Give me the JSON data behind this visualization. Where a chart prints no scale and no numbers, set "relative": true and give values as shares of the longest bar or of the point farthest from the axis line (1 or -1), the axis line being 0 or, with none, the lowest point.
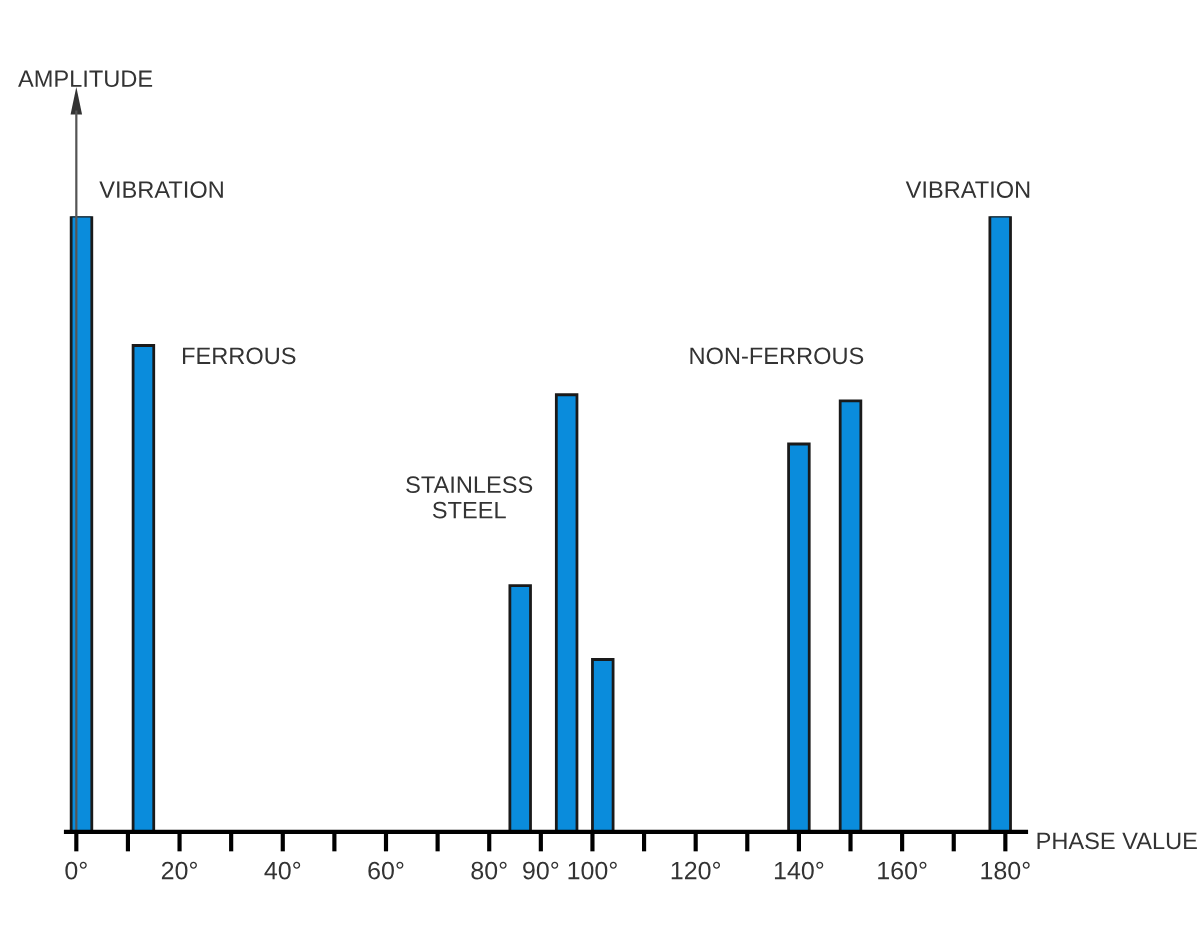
{
  "chart_data": {
    "type": "bar",
    "relative": true,
    "x": [
      1,
      13,
      86,
      95,
      102,
      140,
      150,
      179
    ],
    "values": [
      1,
      0.79,
      0.4,
      0.71,
      0.28,
      0.63,
      0.7,
      1
    ],
    "color": "#0a8cdc",
    "xlabel": "PHASE VALUE",
    "xlim": [
      -2,
      184
    ],
    "xticks": [
      {
        "value": 0,
        "label": "0°"
      },
      {
        "value": 10,
        "label": null
      },
      {
        "value": 20,
        "label": "20°"
      },
      {
        "value": 30,
        "label": null
      },
      {
        "value": 40,
        "label": "40°"
      },
      {
        "value": 50,
        "label": null
      },
      {
        "value": 60,
        "label": "60°"
      },
      {
        "value": 70,
        "label": null
      },
      {
        "value": 80,
        "label": "80°"
      },
      {
        "value": 90,
        "label": "90°"
      },
      {
        "value": 100,
        "label": "100°"
      },
      {
        "value": 110,
        "label": null
      },
      {
        "value": 120,
        "label": "120°"
      },
      {
        "value": 130,
        "label": null
      },
      {
        "value": 140,
        "label": "140°"
      },
      {
        "value": 150,
        "label": null
      },
      {
        "value": 160,
        "label": "160°"
      },
      {
        "value": 170,
        "label": null
      },
      {
        "value": 180,
        "label": "180°"
      }
    ],
    "annotations": [
      "AMPLITUDE",
      "VIBRATION",
      "FERROUS",
      "STAINLESS\nSTEEL",
      "NON-FERROUS",
      "VIBRATION"
    ]
  }
}
